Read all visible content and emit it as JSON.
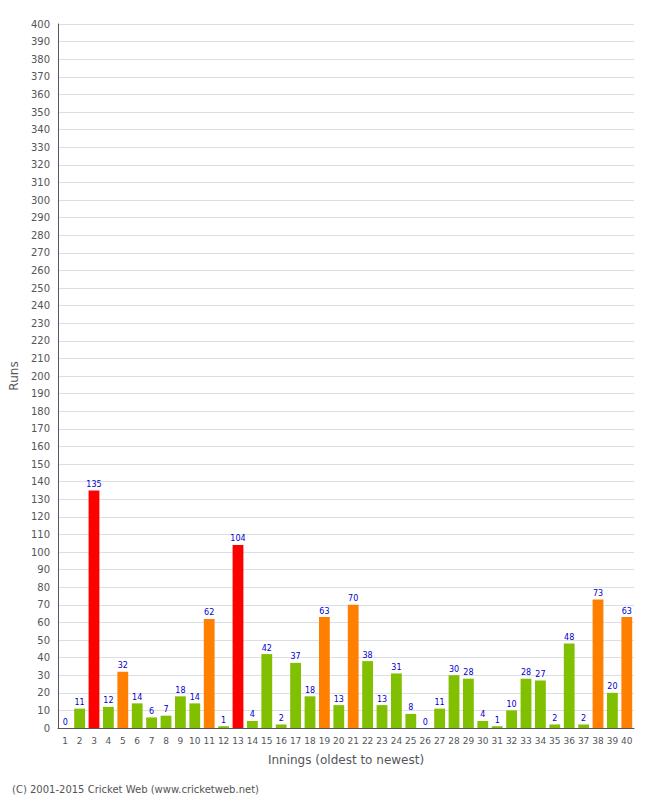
{
  "chart_data": {
    "type": "bar",
    "xlabel": "Innings (oldest to newest)",
    "ylabel": "Runs",
    "annotations": [
      "(C) 2001-2015 Cricket Web (www.cricketweb.net)"
    ],
    "categories": [
      "1",
      "2",
      "3",
      "4",
      "5",
      "6",
      "7",
      "8",
      "9",
      "10",
      "11",
      "12",
      "13",
      "14",
      "15",
      "16",
      "17",
      "18",
      "19",
      "20",
      "21",
      "22",
      "23",
      "24",
      "25",
      "26",
      "27",
      "28",
      "29",
      "30",
      "31",
      "32",
      "33",
      "34",
      "35",
      "36",
      "37",
      "38",
      "39",
      "40"
    ],
    "values": [
      0,
      11,
      135,
      12,
      32,
      14,
      6,
      7,
      18,
      14,
      62,
      1,
      104,
      4,
      42,
      2,
      37,
      18,
      63,
      13,
      70,
      38,
      13,
      31,
      8,
      0,
      11,
      30,
      28,
      4,
      1,
      10,
      28,
      27,
      2,
      48,
      2,
      73,
      20,
      63
    ],
    "colors": [
      "#80c000",
      "#80c000",
      "#ff0000",
      "#80c000",
      "#ff8000",
      "#80c000",
      "#80c000",
      "#80c000",
      "#80c000",
      "#80c000",
      "#ff8000",
      "#80c000",
      "#ff0000",
      "#80c000",
      "#80c000",
      "#80c000",
      "#80c000",
      "#80c000",
      "#ff8000",
      "#80c000",
      "#ff8000",
      "#80c000",
      "#80c000",
      "#80c000",
      "#80c000",
      "#80c000",
      "#80c000",
      "#80c000",
      "#80c000",
      "#80c000",
      "#80c000",
      "#80c000",
      "#80c000",
      "#80c000",
      "#80c000",
      "#80c000",
      "#80c000",
      "#ff8000",
      "#80c000",
      "#ff8000"
    ],
    "ylim": [
      0,
      400
    ],
    "yticks": [
      0,
      10,
      20,
      30,
      40,
      50,
      60,
      70,
      80,
      90,
      100,
      110,
      120,
      130,
      140,
      150,
      160,
      170,
      180,
      190,
      200,
      210,
      220,
      230,
      240,
      250,
      260,
      270,
      280,
      290,
      300,
      310,
      320,
      330,
      340,
      350,
      360,
      370,
      380,
      390,
      400
    ],
    "grid": true,
    "data_labels": true
  }
}
